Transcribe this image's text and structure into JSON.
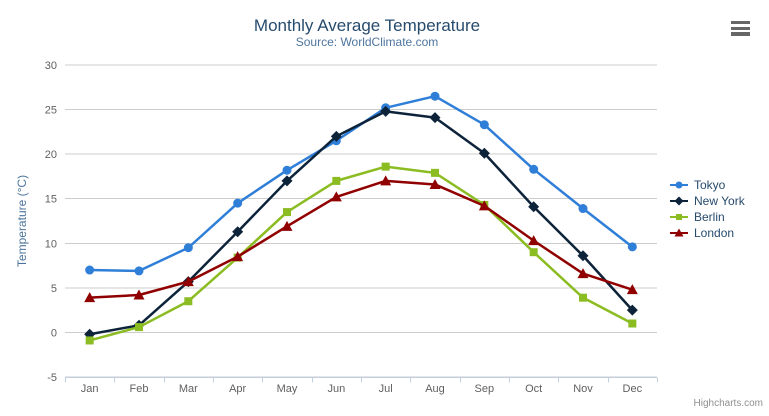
{
  "header": {
    "title": "Monthly Average Temperature",
    "subtitle": "Source: WorldClimate.com"
  },
  "chart_data": {
    "type": "line",
    "title": "Monthly Average Temperature",
    "subtitle": "Source: WorldClimate.com",
    "categories": [
      "Jan",
      "Feb",
      "Mar",
      "Apr",
      "May",
      "Jun",
      "Jul",
      "Aug",
      "Sep",
      "Oct",
      "Nov",
      "Dec"
    ],
    "series": [
      {
        "name": "Tokyo",
        "color": "#2f7ed8",
        "symbol": "circle",
        "values": [
          7.0,
          6.9,
          9.5,
          14.5,
          18.2,
          21.5,
          25.2,
          26.5,
          23.3,
          18.3,
          13.9,
          9.6
        ]
      },
      {
        "name": "New York",
        "color": "#0d233a",
        "symbol": "diamond",
        "values": [
          -0.2,
          0.8,
          5.7,
          11.3,
          17.0,
          22.0,
          24.8,
          24.1,
          20.1,
          14.1,
          8.6,
          2.5
        ]
      },
      {
        "name": "Berlin",
        "color": "#8bbc21",
        "symbol": "square",
        "values": [
          -0.9,
          0.6,
          3.5,
          8.4,
          13.5,
          17.0,
          18.6,
          17.9,
          14.3,
          9.0,
          3.9,
          1.0
        ]
      },
      {
        "name": "London",
        "color": "#910000",
        "symbol": "triangle",
        "values": [
          3.9,
          4.2,
          5.7,
          8.5,
          11.9,
          15.2,
          17.0,
          16.6,
          14.2,
          10.3,
          6.6,
          4.8
        ]
      }
    ],
    "xlabel": "",
    "ylabel": "Temperature (°C)",
    "ylim": [
      -5,
      30
    ],
    "yticks": [
      -5,
      0,
      5,
      10,
      15,
      20,
      25,
      30
    ],
    "grid": true,
    "legend_position": "right"
  },
  "colors": {
    "title": "#274b6d",
    "subtitle": "#4d759e",
    "axis_title": "#4d759e",
    "axis_label": "#606060",
    "grid_line": "#cccccc",
    "axis_line": "#c0d0e0",
    "legend_text": "#274b6d",
    "credits": "#909090",
    "burger_icon": "#666666",
    "background": "#ffffff"
  },
  "credits": {
    "text": "Highcharts.com"
  },
  "export_menu": {
    "icon": "hamburger-menu"
  }
}
